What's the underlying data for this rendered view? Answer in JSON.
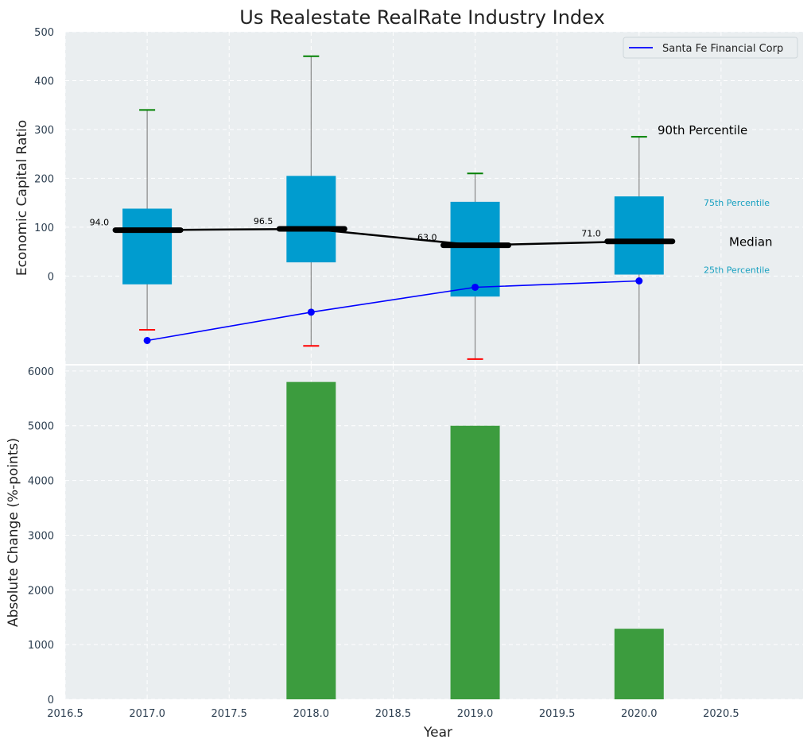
{
  "title": "Us Realestate RealRate Industry Index",
  "colors": {
    "panel_bg": "#eaeef0",
    "box_fill": "#009ccf",
    "median_line": "#000000",
    "company_line": "#0000ff",
    "p90_cap": "#008000",
    "p10_cap": "#ff0000",
    "whisker": "#888888",
    "bar_fill": "#3c9c3e",
    "annotation_teal": "#17a0c0"
  },
  "chart_data": [
    {
      "type": "box",
      "ylabel": "Economic Capital Ratio",
      "yticks": [
        0,
        100,
        200,
        300,
        400,
        500
      ],
      "ylim": [
        -180,
        500
      ],
      "xlim": [
        2016.5,
        2021.0
      ],
      "grid": true,
      "legend": {
        "position": "top-right",
        "entries": [
          "Santa Fe Financial Corp"
        ]
      },
      "series": [
        {
          "name": "Santa Fe Financial Corp",
          "x": [
            2017,
            2018,
            2019,
            2020
          ],
          "values": [
            -132,
            -74,
            -23,
            -10
          ]
        }
      ],
      "boxes": [
        {
          "x": 2017,
          "p10": -110,
          "p25": -17,
          "median": 94.0,
          "p75": 138,
          "p90": 340,
          "median_label": "94.0"
        },
        {
          "x": 2018,
          "p10": -143,
          "p25": 28,
          "median": 96.5,
          "p75": 205,
          "p90": 450,
          "median_label": "96.5"
        },
        {
          "x": 2019,
          "p10": -170,
          "p25": -42,
          "median": 63.0,
          "p75": 152,
          "p90": 210,
          "median_label": "63.0"
        },
        {
          "x": 2020,
          "p10": -180,
          "p25": 3,
          "median": 71.0,
          "p75": 163,
          "p90": 285,
          "median_label": "71.0"
        }
      ],
      "annotations": {
        "p90": "90th Percentile",
        "p75": "75th Percentile",
        "median": "Median",
        "p25": "25th Percentile"
      }
    },
    {
      "type": "bar",
      "xlabel": "Year",
      "ylabel": "Absolute Change (%-points)",
      "yticks": [
        0,
        1000,
        2000,
        3000,
        4000,
        5000,
        6000
      ],
      "xticks": [
        "2016.5",
        "2017.0",
        "2017.5",
        "2018.0",
        "2018.5",
        "2019.0",
        "2019.5",
        "2020.0",
        "2020.5"
      ],
      "ylim": [
        0,
        6100
      ],
      "x": [
        2017,
        2018,
        2019,
        2020
      ],
      "values": [
        0,
        5800,
        5000,
        1290
      ],
      "grid": true
    }
  ]
}
